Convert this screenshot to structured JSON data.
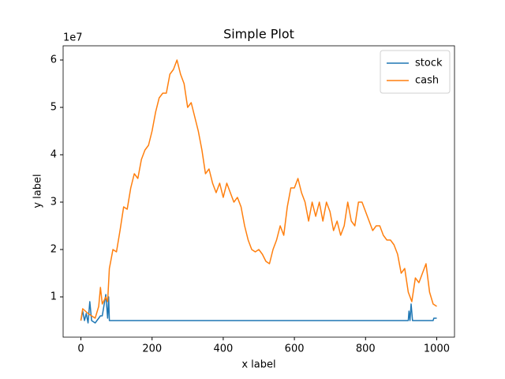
{
  "chart_data": {
    "type": "line",
    "title": "Simple Plot",
    "x_label": "x label",
    "y_label": "y label",
    "y_offset_label": "1e7",
    "xlim": [
      -50,
      1050
    ],
    "xticks": [
      0,
      200,
      400,
      600,
      800,
      1000
    ],
    "ylim": [
      0.15,
      6.3
    ],
    "yticks": [
      1,
      2,
      3,
      4,
      5,
      6
    ],
    "legend": "upper right",
    "series": [
      {
        "name": "stock",
        "color": "#1f77b4",
        "x": [
          0,
          5,
          10,
          15,
          20,
          25,
          30,
          40,
          50,
          55,
          60,
          70,
          75,
          78,
          80,
          920,
          922,
          925,
          928,
          932,
          990,
          992,
          1000
        ],
        "values": [
          0.5,
          0.7,
          0.5,
          0.65,
          0.45,
          0.9,
          0.5,
          0.45,
          0.55,
          0.6,
          0.6,
          1.05,
          0.55,
          1.0,
          0.5,
          0.5,
          0.7,
          0.5,
          0.85,
          0.5,
          0.5,
          0.55,
          0.55
        ]
      },
      {
        "name": "cash",
        "color": "#ff7f0e",
        "x": [
          0,
          5,
          20,
          40,
          50,
          55,
          60,
          70,
          75,
          80,
          85,
          90,
          100,
          110,
          120,
          130,
          140,
          150,
          160,
          170,
          180,
          190,
          200,
          210,
          220,
          230,
          240,
          250,
          260,
          270,
          280,
          290,
          300,
          310,
          320,
          330,
          340,
          350,
          360,
          370,
          380,
          390,
          400,
          410,
          420,
          430,
          440,
          450,
          460,
          470,
          480,
          490,
          500,
          510,
          520,
          530,
          540,
          550,
          560,
          570,
          580,
          590,
          600,
          610,
          620,
          630,
          640,
          650,
          660,
          670,
          680,
          690,
          700,
          710,
          720,
          730,
          740,
          750,
          760,
          770,
          780,
          790,
          800,
          810,
          820,
          830,
          840,
          850,
          860,
          870,
          880,
          890,
          900,
          910,
          920,
          930,
          940,
          950,
          960,
          970,
          980,
          990,
          1000
        ],
        "values": [
          0.5,
          0.75,
          0.65,
          0.55,
          0.8,
          1.2,
          0.85,
          1.0,
          0.9,
          1.6,
          1.8,
          2.0,
          1.95,
          2.4,
          2.9,
          2.85,
          3.3,
          3.6,
          3.5,
          3.9,
          4.1,
          4.2,
          4.5,
          4.9,
          5.2,
          5.3,
          5.3,
          5.7,
          5.8,
          6.0,
          5.7,
          5.5,
          5.0,
          5.1,
          4.8,
          4.5,
          4.1,
          3.6,
          3.7,
          3.4,
          3.2,
          3.4,
          3.1,
          3.4,
          3.2,
          3.0,
          3.1,
          2.9,
          2.5,
          2.2,
          2.0,
          1.95,
          2.0,
          1.9,
          1.75,
          1.7,
          2.0,
          2.2,
          2.5,
          2.3,
          2.9,
          3.3,
          3.3,
          3.5,
          3.2,
          3.0,
          2.6,
          3.0,
          2.7,
          3.0,
          2.6,
          3.0,
          2.8,
          2.4,
          2.6,
          2.3,
          2.5,
          3.0,
          2.6,
          2.5,
          3.0,
          3.0,
          2.8,
          2.6,
          2.4,
          2.5,
          2.5,
          2.3,
          2.2,
          2.2,
          2.1,
          1.9,
          1.5,
          1.6,
          1.1,
          0.9,
          1.4,
          1.3,
          1.5,
          1.7,
          1.1,
          0.85,
          0.8
        ]
      }
    ]
  }
}
